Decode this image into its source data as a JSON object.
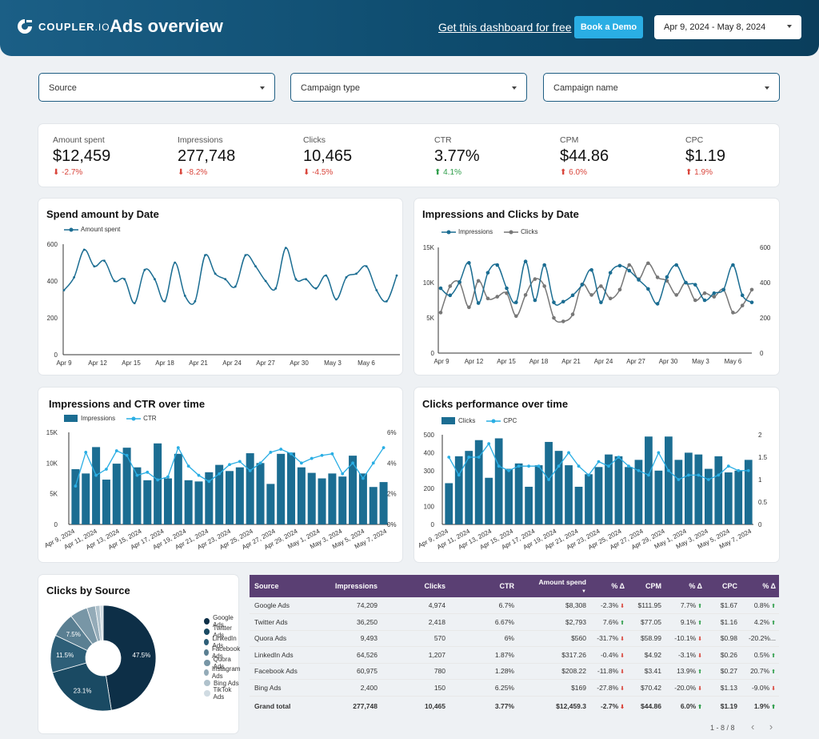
{
  "header": {
    "logo_text": "COUPLER",
    "logo_suffix": ".IO",
    "title": "Ads overview",
    "free_link": "Get this dashboard for free",
    "demo_button": "Book a Demo",
    "date_range": "Apr 9, 2024 - May 8, 2024"
  },
  "filters": {
    "source": "Source",
    "campaign_type": "Campaign type",
    "campaign_name": "Campaign name"
  },
  "kpis": [
    {
      "label": "Amount spent",
      "value": "$12,459",
      "delta": "-2.7%",
      "dir": "down"
    },
    {
      "label": "Impressions",
      "value": "277,748",
      "delta": "-8.2%",
      "dir": "down"
    },
    {
      "label": "Clicks",
      "value": "10,465",
      "delta": "-4.5%",
      "dir": "down"
    },
    {
      "label": "CTR",
      "value": "3.77%",
      "delta": "4.1%",
      "dir": "up"
    },
    {
      "label": "CPM",
      "value": "$44.86",
      "delta": "6.0%",
      "dir": "up"
    },
    {
      "label": "CPC",
      "value": "$1.19",
      "delta": "1.9%",
      "dir": "up"
    }
  ],
  "colors": {
    "primary": "#1b6d92",
    "secondary": "#777777",
    "bar": "#1b6d92",
    "line": "#2aaee4",
    "header": "#0d4a6c",
    "table_header": "#5a3f73"
  },
  "chart_data": [
    {
      "type": "line",
      "title": "Spend amount by Date",
      "legend": [
        "Amount spent"
      ],
      "ylim": [
        0,
        600
      ],
      "yticks": [
        "600",
        "400",
        "200",
        "0"
      ],
      "xticks": [
        "Apr 9",
        "Apr 12",
        "Apr 15",
        "Apr 18",
        "Apr 21",
        "Apr 24",
        "Apr 27",
        "Apr 30",
        "May 3",
        "May 6"
      ],
      "values": [
        350,
        420,
        570,
        480,
        510,
        400,
        410,
        280,
        460,
        410,
        290,
        500,
        320,
        290,
        540,
        440,
        410,
        370,
        540,
        480,
        400,
        360,
        580,
        410,
        410,
        360,
        430,
        300,
        420,
        440,
        480,
        350,
        290,
        430
      ]
    },
    {
      "type": "line",
      "title": "Impressions and Clicks by Date",
      "legend": [
        "Impressions",
        "Clicks"
      ],
      "ylim_left": [
        0,
        15000
      ],
      "ylim_right": [
        0,
        600
      ],
      "yticks_left": [
        "15K",
        "10K",
        "5K",
        "0"
      ],
      "yticks_right": [
        "600",
        "400",
        "200",
        "0"
      ],
      "xticks": [
        "Apr 9",
        "Apr 12",
        "Apr 15",
        "Apr 18",
        "Apr 21",
        "Apr 24",
        "Apr 27",
        "Apr 30",
        "May 3",
        "May 6"
      ],
      "series": [
        {
          "name": "Impressions",
          "values": [
            9200,
            8200,
            10100,
            12800,
            7100,
            11400,
            12500,
            9200,
            7200,
            13000,
            7500,
            12500,
            7200,
            7300,
            8200,
            9700,
            11800,
            7200,
            11400,
            12400,
            11700,
            10400,
            9100,
            7000,
            10800,
            12500,
            10000,
            9700,
            7500,
            8500,
            9000,
            12500,
            8200,
            7200
          ]
        },
        {
          "name": "Clicks",
          "values": [
            230,
            380,
            400,
            260,
            410,
            310,
            320,
            340,
            210,
            330,
            420,
            380,
            200,
            180,
            220,
            390,
            330,
            380,
            310,
            360,
            500,
            420,
            510,
            430,
            410,
            330,
            400,
            300,
            340,
            320,
            360,
            230,
            270,
            360
          ]
        }
      ]
    },
    {
      "type": "bar",
      "title": "Impressions and CTR over time",
      "legend": [
        "Impressions",
        "CTR"
      ],
      "ylim_left": [
        0,
        15000
      ],
      "ylim_right": [
        0,
        6
      ],
      "yticks_left": [
        "15K",
        "10K",
        "5K",
        "0"
      ],
      "yticks_right": [
        "6%",
        "4%",
        "2%",
        "0%"
      ],
      "xticks": [
        "Apr 9, 2024",
        "Apr 11, 2024",
        "Apr 13, 2024",
        "Apr 15, 2024",
        "Apr 17, 2024",
        "Apr 19, 2024",
        "Apr 21, 2024",
        "Apr 23, 2024",
        "Apr 25, 2024",
        "Apr 27, 2024",
        "Apr 29, 2024",
        "May 1, 2024",
        "May 3, 2024",
        "May 5, 2024",
        "May 7, 2024"
      ],
      "series": [
        {
          "name": "Impressions",
          "values": [
            9000,
            8300,
            12600,
            7300,
            9900,
            12500,
            9300,
            7200,
            13200,
            7500,
            11500,
            7200,
            7000,
            8500,
            9700,
            8700,
            9300,
            11600,
            10000,
            6600,
            11500,
            11700,
            9300,
            8400,
            7500,
            8300,
            7800,
            11200,
            8300,
            6100,
            6900
          ]
        },
        {
          "name": "CTR",
          "values": [
            2.5,
            4.7,
            3.2,
            3.6,
            4.8,
            4.5,
            3.2,
            3.4,
            2.9,
            3.1,
            5.0,
            3.8,
            3.2,
            2.8,
            3.3,
            3.9,
            4.1,
            3.5,
            4.0,
            4.7,
            4.9,
            4.6,
            4.0,
            4.3,
            4.5,
            4.6,
            3.3,
            4.0,
            3.0,
            4.0,
            5.0
          ]
        }
      ]
    },
    {
      "type": "bar",
      "title": "Clicks performance over time",
      "legend": [
        "Clicks",
        "CPC"
      ],
      "ylim_left": [
        0,
        500
      ],
      "ylim_right": [
        0,
        2
      ],
      "yticks_left": [
        "500",
        "400",
        "300",
        "200",
        "100",
        "0"
      ],
      "yticks_right": [
        "2",
        "1.5",
        "1",
        "0.5",
        "0"
      ],
      "xticks": [
        "Apr 9, 2024",
        "Apr 11, 2024",
        "Apr 13, 2024",
        "Apr 15, 2024",
        "Apr 17, 2024",
        "Apr 19, 2024",
        "Apr 21, 2024",
        "Apr 23, 2024",
        "Apr 25, 2024",
        "Apr 27, 2024",
        "Apr 29, 2024",
        "May 1, 2024",
        "May 3, 2024",
        "May 5, 2024",
        "May 7, 2024"
      ],
      "series": [
        {
          "name": "Clicks",
          "values": [
            230,
            380,
            410,
            470,
            260,
            480,
            310,
            340,
            210,
            330,
            460,
            410,
            330,
            210,
            280,
            320,
            390,
            380,
            320,
            360,
            490,
            300,
            490,
            360,
            400,
            390,
            310,
            380,
            290,
            300,
            360
          ]
        },
        {
          "name": "CPC",
          "values": [
            1.5,
            1.1,
            1.5,
            1.5,
            1.8,
            1.3,
            1.2,
            1.3,
            1.3,
            1.3,
            1.0,
            1.3,
            1.6,
            1.3,
            1.1,
            1.4,
            1.3,
            1.5,
            1.3,
            1.2,
            1.1,
            1.6,
            1.2,
            1.0,
            1.1,
            1.1,
            1.0,
            1.1,
            1.3,
            1.2,
            1.2
          ]
        }
      ]
    },
    {
      "type": "pie",
      "title": "Clicks by Source",
      "labels": [
        "Google Ads",
        "Twitter Ads",
        "LinkedIn Ads",
        "Facebook Ads",
        "Quora Ads",
        "Instagram Ads",
        "Bing Ads",
        "TikTok Ads"
      ],
      "values": [
        47.5,
        23.1,
        11.5,
        7.5,
        5.4,
        2.6,
        1.4,
        1.0
      ],
      "value_labels": [
        "47.5%",
        "23.1%",
        "11.5%",
        "7.5%",
        "",
        "",
        "",
        ""
      ],
      "colors": [
        "#0d2f47",
        "#1a4a63",
        "#2e5f78",
        "#5a7f92",
        "#7896a6",
        "#94abb8",
        "#b0c2cc",
        "#d0dbe2"
      ]
    }
  ],
  "table": {
    "headers": [
      "Source",
      "Impressions",
      "Clicks",
      "CTR",
      "Amount spend",
      "% Δ",
      "CPM",
      "% Δ",
      "CPC",
      "% Δ"
    ],
    "rows": [
      {
        "source": "Google Ads",
        "impressions": "74,209",
        "clicks": "4,974",
        "ctr": "6.7%",
        "spend": "$8,308",
        "spend_d": "-2.3%",
        "spend_dir": "down",
        "cpm": "$111.95",
        "cpm_d": "7.7%",
        "cpm_dir": "up",
        "cpc": "$1.67",
        "cpc_d": "0.8%",
        "cpc_dir": "up"
      },
      {
        "source": "Twitter Ads",
        "impressions": "36,250",
        "clicks": "2,418",
        "ctr": "6.67%",
        "spend": "$2,793",
        "spend_d": "7.6%",
        "spend_dir": "up",
        "cpm": "$77.05",
        "cpm_d": "9.1%",
        "cpm_dir": "up",
        "cpc": "$1.16",
        "cpc_d": "4.2%",
        "cpc_dir": "up"
      },
      {
        "source": "Quora Ads",
        "impressions": "9,493",
        "clicks": "570",
        "ctr": "6%",
        "spend": "$560",
        "spend_d": "-31.7%",
        "spend_dir": "down",
        "cpm": "$58.99",
        "cpm_d": "-10.1%",
        "cpm_dir": "down",
        "cpc": "$0.98",
        "cpc_d": "-20.2%...",
        "cpc_dir": ""
      },
      {
        "source": "LinkedIn Ads",
        "impressions": "64,526",
        "clicks": "1,207",
        "ctr": "1.87%",
        "spend": "$317.26",
        "spend_d": "-0.4%",
        "spend_dir": "down",
        "cpm": "$4.92",
        "cpm_d": "-3.1%",
        "cpm_dir": "down",
        "cpc": "$0.26",
        "cpc_d": "0.5%",
        "cpc_dir": "up"
      },
      {
        "source": "Facebook Ads",
        "impressions": "60,975",
        "clicks": "780",
        "ctr": "1.28%",
        "spend": "$208.22",
        "spend_d": "-11.8%",
        "spend_dir": "down",
        "cpm": "$3.41",
        "cpm_d": "13.9%",
        "cpm_dir": "up",
        "cpc": "$0.27",
        "cpc_d": "20.7%",
        "cpc_dir": "up"
      },
      {
        "source": "Bing Ads",
        "impressions": "2,400",
        "clicks": "150",
        "ctr": "6.25%",
        "spend": "$169",
        "spend_d": "-27.8%",
        "spend_dir": "down",
        "cpm": "$70.42",
        "cpm_d": "-20.0%",
        "cpm_dir": "down",
        "cpc": "$1.13",
        "cpc_d": "-9.0%",
        "cpc_dir": "down"
      }
    ],
    "total": {
      "source": "Grand total",
      "impressions": "277,748",
      "clicks": "10,465",
      "ctr": "3.77%",
      "spend": "$12,459.3",
      "spend_d": "-2.7%",
      "spend_dir": "down",
      "cpm": "$44.86",
      "cpm_d": "6.0%",
      "cpm_dir": "up",
      "cpc": "$1.19",
      "cpc_d": "1.9%",
      "cpc_dir": "up"
    },
    "pager": "1 - 8 / 8",
    "prev_icon": "‹",
    "next_icon": "›"
  }
}
